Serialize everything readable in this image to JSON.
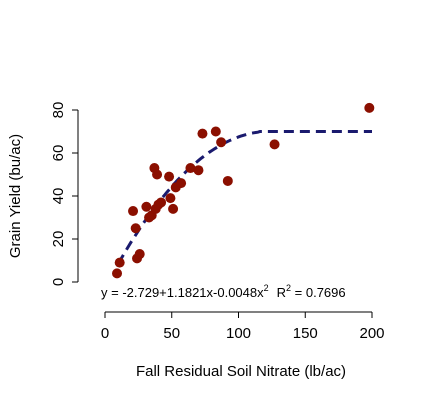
{
  "chart_data": {
    "type": "scatter",
    "xlabel": "Fall Residual Soil Nitrate (lb/ac)",
    "ylabel": "Grain Yield (bu/ac)",
    "xlim": [
      0,
      200
    ],
    "ylim": [
      0,
      80
    ],
    "x_ticks": [
      "0",
      "50",
      "100",
      "150",
      "200"
    ],
    "y_ticks": [
      "0",
      "20",
      "40",
      "60",
      "80"
    ],
    "grid": false,
    "legend": "none",
    "point_color": "#8b0f00",
    "fit_color": "#1a1a6e",
    "points": [
      {
        "x": 9,
        "y": 4
      },
      {
        "x": 11,
        "y": 9
      },
      {
        "x": 21,
        "y": 33
      },
      {
        "x": 23,
        "y": 25
      },
      {
        "x": 24,
        "y": 11
      },
      {
        "x": 26,
        "y": 13
      },
      {
        "x": 31,
        "y": 35
      },
      {
        "x": 33,
        "y": 30
      },
      {
        "x": 35,
        "y": 31
      },
      {
        "x": 37,
        "y": 53
      },
      {
        "x": 38,
        "y": 34
      },
      {
        "x": 39,
        "y": 50
      },
      {
        "x": 40,
        "y": 36
      },
      {
        "x": 42,
        "y": 37
      },
      {
        "x": 48,
        "y": 49
      },
      {
        "x": 49,
        "y": 39
      },
      {
        "x": 51,
        "y": 34
      },
      {
        "x": 53,
        "y": 44
      },
      {
        "x": 57,
        "y": 46
      },
      {
        "x": 64,
        "y": 53
      },
      {
        "x": 70,
        "y": 52
      },
      {
        "x": 73,
        "y": 69
      },
      {
        "x": 83,
        "y": 70
      },
      {
        "x": 87,
        "y": 65
      },
      {
        "x": 92,
        "y": 47
      },
      {
        "x": 127,
        "y": 64
      },
      {
        "x": 198,
        "y": 81
      }
    ],
    "fit": {
      "type": "quadratic-plateau",
      "intercept": -2.729,
      "linear": 1.1821,
      "quadratic": -0.0048,
      "plateau": 70,
      "x_range": [
        10,
        200
      ]
    },
    "annotation": {
      "equation": "y = -2.729+1.1821x-0.0048x",
      "equation_sup": "2",
      "r2_label": "R",
      "r2_sup": "2",
      "r2_value": " = 0.7696"
    }
  }
}
